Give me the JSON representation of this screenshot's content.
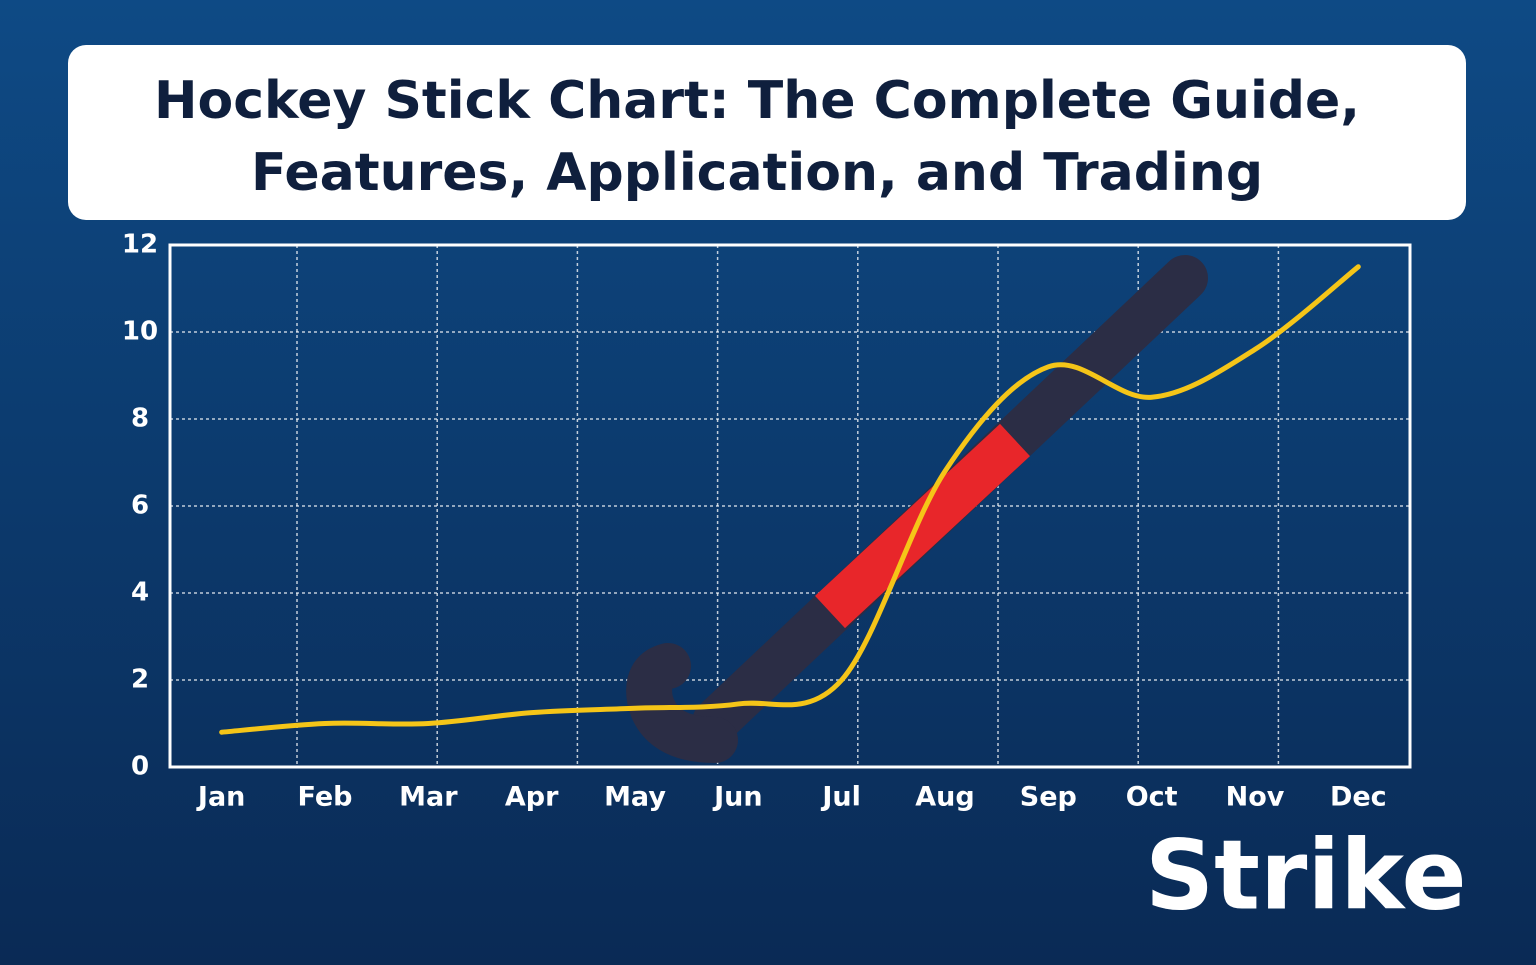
{
  "chart_data": {
    "type": "line",
    "title": [
      "Hockey Stick Chart: The Complete Guide,",
      "Features, Application, and Trading"
    ],
    "categories": [
      "Jan",
      "Feb",
      "Mar",
      "Apr",
      "May",
      "Jun",
      "Jul",
      "Aug",
      "Sep",
      "Oct",
      "Nov",
      "Dec"
    ],
    "values": [
      0.8,
      1.0,
      1.0,
      1.25,
      1.35,
      1.45,
      2.0,
      6.8,
      9.2,
      8.5,
      9.6,
      11.5
    ],
    "color": "#f5c518",
    "ylim": [
      0,
      12
    ],
    "yticks": [
      0,
      2,
      4,
      6,
      8,
      10,
      12
    ],
    "grid": true
  },
  "logo": "Strike"
}
